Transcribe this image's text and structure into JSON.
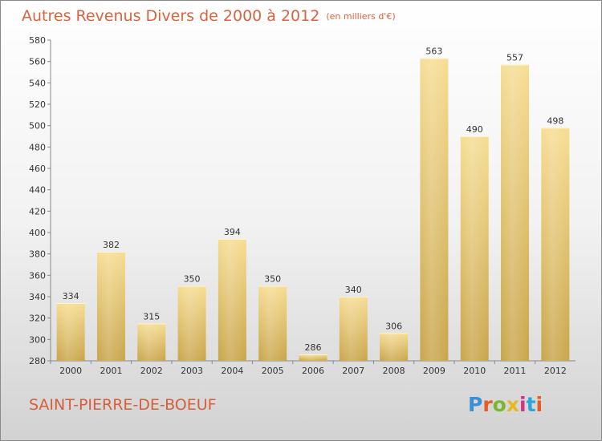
{
  "header": {
    "title": "Autres Revenus Divers de 2000 à 2012",
    "unit": "(en milliers d'€)"
  },
  "footer": {
    "commune": "SAINT-PIERRE-DE-BOEUF",
    "brand": "Proxiti",
    "brand_colors": [
      "#3b8fd6",
      "#e85a28",
      "#78b82a",
      "#e8b820",
      "#d82f8a",
      "#2aa6d8",
      "#e85a28"
    ]
  },
  "colors": {
    "bar_light": "#f6dd93",
    "bar_dark": "#c9a54b",
    "text": "#d9633f",
    "axis_text": "#333333"
  },
  "chart_data": {
    "type": "bar",
    "categories": [
      "2000",
      "2001",
      "2002",
      "2003",
      "2004",
      "2005",
      "2006",
      "2007",
      "2008",
      "2009",
      "2010",
      "2011",
      "2012"
    ],
    "values": [
      334,
      382,
      315,
      350,
      394,
      350,
      286,
      340,
      306,
      563,
      490,
      557,
      498
    ],
    "title": "Autres Revenus Divers de 2000 à 2012",
    "ylim": [
      280,
      580
    ],
    "yticks": [
      280,
      300,
      320,
      340,
      360,
      380,
      400,
      420,
      440,
      460,
      480,
      500,
      520,
      540,
      560,
      580
    ],
    "grid": false
  }
}
